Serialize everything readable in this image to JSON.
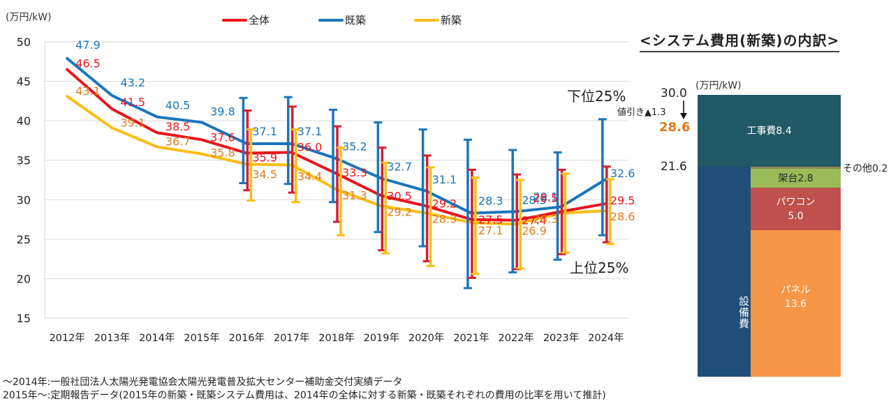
{
  "chart_data": [
    {
      "type": "line",
      "title": "",
      "ylabel": "(万円/kW)",
      "xlabel": "",
      "ylim": [
        15,
        50
      ],
      "yticks": [
        15,
        20,
        25,
        30,
        35,
        40,
        45,
        50
      ],
      "grid": true,
      "legend_position": "top",
      "categories": [
        "2012年",
        "2013年",
        "2014年",
        "2015年",
        "2016年",
        "2017年",
        "2018年",
        "2019年",
        "2020年",
        "2021年",
        "2022年",
        "2023年",
        "2024年"
      ],
      "series": [
        {
          "name": "全体",
          "color": "#e8141c",
          "label_color": "#e8141c",
          "values": [
            46.5,
            41.5,
            38.5,
            37.6,
            35.9,
            36.0,
            33.3,
            30.5,
            29.2,
            27.5,
            27.4,
            28.5,
            29.5
          ],
          "error_low": [
            null,
            null,
            null,
            null,
            31.2,
            30.9,
            27.2,
            23.6,
            22.2,
            20.1,
            21.2,
            23.1,
            24.6
          ],
          "error_high": [
            null,
            null,
            null,
            null,
            41.3,
            41.8,
            39.3,
            36.6,
            35.6,
            33.8,
            33.2,
            33.8,
            34.2
          ]
        },
        {
          "name": "既築",
          "color": "#1b75bc",
          "label_color": "#1b75bc",
          "values": [
            47.9,
            43.2,
            40.5,
            39.8,
            37.1,
            37.1,
            35.2,
            32.7,
            31.1,
            28.3,
            28.5,
            29.1,
            32.6
          ],
          "error_low": [
            null,
            null,
            null,
            null,
            32.1,
            32.0,
            29.7,
            25.9,
            24.1,
            18.8,
            20.8,
            22.4,
            25.5
          ],
          "error_high": [
            null,
            null,
            null,
            null,
            42.9,
            43.0,
            41.4,
            39.8,
            38.9,
            37.6,
            36.3,
            36.0,
            40.2
          ]
        },
        {
          "name": "新築",
          "color": "#fbbd14",
          "label_color": "#e07b20",
          "values": [
            43.1,
            39.1,
            36.7,
            35.8,
            34.5,
            34.4,
            31.3,
            29.2,
            28.3,
            27.1,
            26.9,
            28.3,
            28.6
          ],
          "error_low": [
            null,
            null,
            null,
            null,
            29.9,
            29.7,
            25.5,
            23.2,
            21.6,
            20.6,
            21.3,
            23.3,
            24.4
          ],
          "error_high": [
            null,
            null,
            null,
            null,
            38.9,
            38.9,
            36.6,
            34.7,
            34.1,
            32.8,
            32.5,
            33.3,
            32.6
          ]
        }
      ],
      "annotations": [
        "下位25%",
        "上位25%"
      ]
    },
    {
      "type": "bar",
      "title": "<システム費用(新築)の内訳>",
      "ylabel": "(万円/kW)",
      "stacked": true,
      "total": 30.0,
      "after_discount": 28.6,
      "discount_label": "値引き▲1.3",
      "equipment_subtotal": 21.6,
      "equipment_label": "設備費",
      "components": [
        {
          "name": "パネル",
          "value": 13.6,
          "color": "#f79646"
        },
        {
          "name": "パワコン",
          "value": 5.0,
          "color": "#c0504d"
        },
        {
          "name": "架台",
          "value": 2.8,
          "color": "#9bbb59"
        },
        {
          "name": "その他",
          "value": 0.2,
          "color": "#938953"
        },
        {
          "name": "工事費",
          "value": 8.4,
          "color": "#215967"
        }
      ],
      "equipment_color": "#1f4e79"
    }
  ],
  "main": {
    "unit": "(万円/kW)",
    "legend": [
      "全体",
      "既築",
      "新築"
    ],
    "lower_quartile_label": "下位25%",
    "upper_quartile_label": "上位25%"
  },
  "breakdown": {
    "title": "<システム費用(新築)の内訳>",
    "unit": "(万円/kW)",
    "total_label": "30.0",
    "discount_label": "値引き▲1.3",
    "after_label": "28.6",
    "subtotal_label": "21.6",
    "equipment_label": "設備費",
    "construction_label": "工事費8.4",
    "other_label": "その他0.2",
    "mount_label": "架台2.8",
    "pcs_label_1": "パワコン",
    "pcs_label_2": "5.0",
    "panel_label_1": "パネル",
    "panel_label_2": "13.6",
    "accent_color": "#e07b20"
  },
  "footnotes": [
    "〜2014年:一般社団法人太陽光発電協会太陽光発電普及拡大センター補助金交付実績データ",
    "2015年〜:定期報告データ(2015年の新築・既築システム費用は、2014年の全体に対する新築・既築それぞれの費用の比率を用いて推計)"
  ]
}
